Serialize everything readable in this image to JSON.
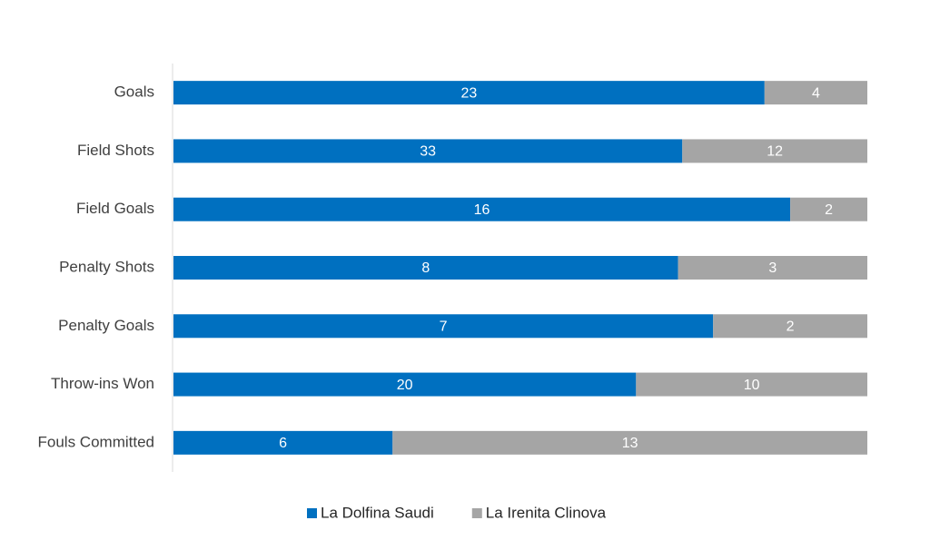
{
  "chart_data": {
    "type": "bar",
    "horizontal": true,
    "stacked": "percent",
    "categories": [
      "Goals",
      "Field Shots",
      "Field Goals",
      "Penalty Shots",
      "Penalty Goals",
      "Throw-ins Won",
      "Fouls Committed"
    ],
    "series": [
      {
        "name": "La Dolfina Saudi",
        "color": "#0070c0",
        "values": [
          23,
          33,
          16,
          8,
          7,
          20,
          6
        ]
      },
      {
        "name": "La Irenita Clinova",
        "color": "#a5a5a5",
        "values": [
          4,
          12,
          2,
          3,
          2,
          10,
          13
        ]
      }
    ],
    "legend": "bottom"
  }
}
